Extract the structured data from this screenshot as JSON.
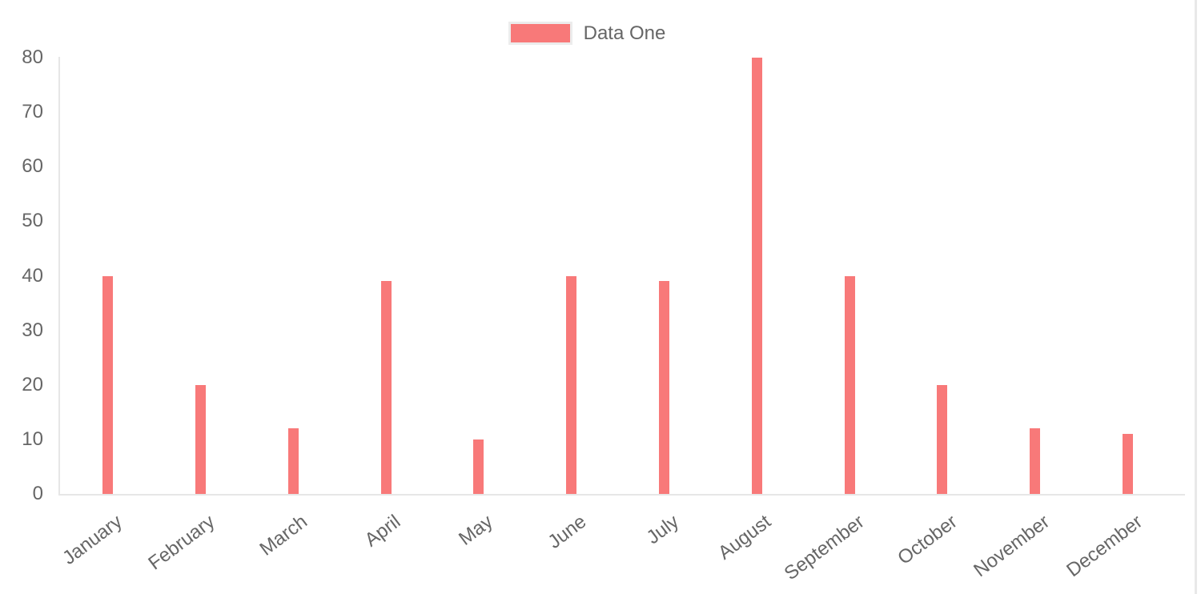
{
  "legend": {
    "items": [
      {
        "label": "Data One",
        "swatch_color": "#f87979",
        "swatch_border_color": "#ececec"
      }
    ]
  },
  "chart_data": {
    "type": "bar",
    "title": "",
    "xlabel": "",
    "ylabel": "",
    "categories": [
      "January",
      "February",
      "March",
      "April",
      "May",
      "June",
      "July",
      "August",
      "September",
      "October",
      "November",
      "December"
    ],
    "series": [
      {
        "name": "Data One",
        "color": "#f87979",
        "values": [
          40,
          20,
          12,
          39,
          10,
          40,
          39,
          80,
          40,
          20,
          12,
          11
        ]
      }
    ],
    "ylim": [
      0,
      80
    ],
    "yticks": [
      0,
      10,
      20,
      30,
      40,
      50,
      60,
      70,
      80
    ],
    "legend_position": "top-center",
    "grid": false,
    "axis_line_color": "#e6e6e6",
    "tick_label_color": "#666666",
    "x_tick_rotation_deg": -37
  }
}
